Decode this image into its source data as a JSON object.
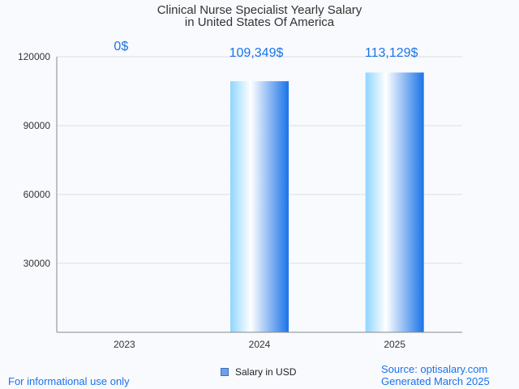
{
  "chart_data": {
    "type": "bar",
    "title_lines": [
      "Clinical Nurse Specialist Yearly Salary",
      "in United States Of America"
    ],
    "categories": [
      "2023",
      "2024",
      "2025"
    ],
    "series": [
      {
        "name": "Salary in USD",
        "values": [
          0,
          109349,
          113129
        ]
      }
    ],
    "data_labels": [
      "0$",
      "109,349$",
      "113,129$"
    ],
    "yticks": [
      30000,
      60000,
      90000,
      120000
    ],
    "ylim": [
      0,
      120000
    ],
    "grid": true,
    "legend_position": "bottom-center",
    "colors": {
      "bar_light": "#ffffff",
      "bar_mid": "#8fd6ff",
      "bar_dark": "#1a73e8"
    }
  },
  "footer": {
    "left": "For informational use only",
    "source": "Source: optisalary.com",
    "generated": "Generated March 2025"
  }
}
